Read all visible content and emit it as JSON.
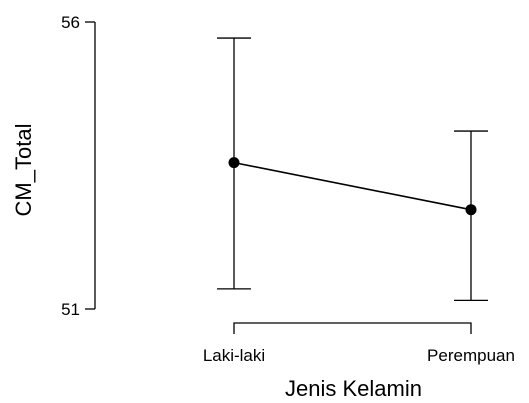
{
  "chart_data": {
    "type": "line",
    "title": "",
    "xlabel": "Jenis Kelamin",
    "ylabel": "CM_Total",
    "categories": [
      "Laki-laki",
      "Perempuan"
    ],
    "series": [
      {
        "values": [
          53.55,
          52.73
        ],
        "error_low": [
          51.35,
          51.15
        ],
        "error_high": [
          55.72,
          54.1
        ]
      }
    ],
    "ylim": [
      51,
      56
    ],
    "yticks": [
      "51",
      "56"
    ],
    "grid": false,
    "legend": "none",
    "colors": {
      "line": "#000000",
      "point": "#000000"
    }
  }
}
